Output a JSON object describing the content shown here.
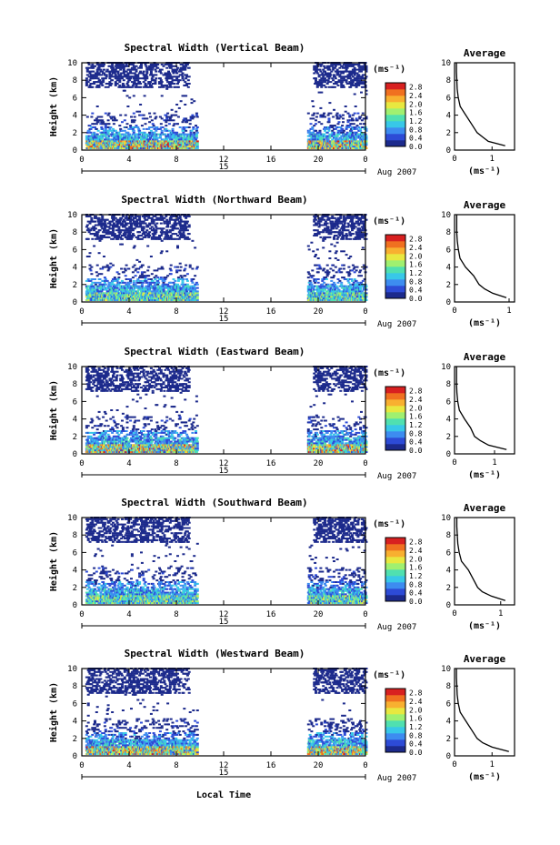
{
  "chart_data": {
    "type": "heatmap",
    "date_label": "Aug 2007",
    "xlabel": "Local Time",
    "panel_ylabel": "Height (km)",
    "unit_label": "(ms⁻¹)",
    "average_title": "Average",
    "average_xlabel": "(ms⁻¹)",
    "x_ticks": [
      "0",
      "4",
      "8",
      "12",
      "16",
      "20",
      "0"
    ],
    "x_range_hours": [
      0,
      24
    ],
    "day_label": "15",
    "y_ticks": [
      "0",
      "2",
      "4",
      "6",
      "8",
      "10"
    ],
    "ylim": [
      0,
      10
    ],
    "colorbar": {
      "ticks": [
        "0.0",
        "0.4",
        "0.8",
        "1.2",
        "1.6",
        "2.0",
        "2.4",
        "2.8"
      ],
      "range": [
        0,
        3.0
      ],
      "colors": [
        "#1c2a8c",
        "#2d4bd6",
        "#3d8cf0",
        "#38c8e8",
        "#50e0b0",
        "#a0f070",
        "#e8e840",
        "#f8b030",
        "#f07020",
        "#d82020"
      ]
    },
    "data_gap_hours": [
      9.7,
      19.0
    ],
    "panels": [
      {
        "title": "Spectral Width (Vertical Beam)",
        "avg_xticks": [
          "0",
          "1"
        ],
        "avg_xlim": [
          0,
          1.6
        ],
        "avg_height_km": [
          0.5,
          1,
          1.5,
          2,
          3,
          4,
          5,
          6,
          7,
          8,
          9,
          10
        ],
        "avg_width": [
          1.35,
          0.9,
          0.75,
          0.6,
          0.45,
          0.3,
          0.15,
          0.1,
          0.07,
          0.06,
          0.05,
          0.05
        ]
      },
      {
        "title": "Spectral Width (Northward Beam)",
        "avg_xticks": [
          "0",
          "1"
        ],
        "avg_xlim": [
          0,
          1.1
        ],
        "avg_height_km": [
          0.5,
          1,
          1.5,
          2,
          3,
          4,
          5,
          6,
          7,
          8,
          9,
          10
        ],
        "avg_width": [
          0.95,
          0.7,
          0.55,
          0.45,
          0.35,
          0.2,
          0.1,
          0.07,
          0.05,
          0.04,
          0.04,
          0.04
        ]
      },
      {
        "title": "Spectral Width (Eastward Beam)",
        "avg_xticks": [
          "0",
          "1"
        ],
        "avg_xlim": [
          0,
          1.5
        ],
        "avg_height_km": [
          0.5,
          1,
          1.5,
          2,
          3,
          4,
          5,
          6,
          7,
          8,
          9,
          10
        ],
        "avg_width": [
          1.3,
          0.85,
          0.65,
          0.5,
          0.4,
          0.25,
          0.12,
          0.08,
          0.06,
          0.05,
          0.05,
          0.05
        ]
      },
      {
        "title": "Spectral Width (Southward Beam)",
        "avg_xticks": [
          "0",
          "1"
        ],
        "avg_xlim": [
          0,
          1.3
        ],
        "avg_height_km": [
          0.5,
          1,
          1.5,
          2,
          3,
          4,
          5,
          6,
          7,
          8,
          9,
          10
        ],
        "avg_width": [
          1.1,
          0.8,
          0.6,
          0.5,
          0.4,
          0.3,
          0.15,
          0.1,
          0.07,
          0.06,
          0.05,
          0.05
        ]
      },
      {
        "title": "Spectral Width (Westward Beam)",
        "avg_xticks": [
          "0",
          "1"
        ],
        "avg_xlim": [
          0,
          1.6
        ],
        "avg_height_km": [
          0.5,
          1,
          1.5,
          2,
          3,
          4,
          5,
          6,
          7,
          8,
          9,
          10
        ],
        "avg_width": [
          1.45,
          1.0,
          0.75,
          0.6,
          0.45,
          0.3,
          0.15,
          0.1,
          0.07,
          0.06,
          0.05,
          0.05
        ]
      }
    ]
  }
}
